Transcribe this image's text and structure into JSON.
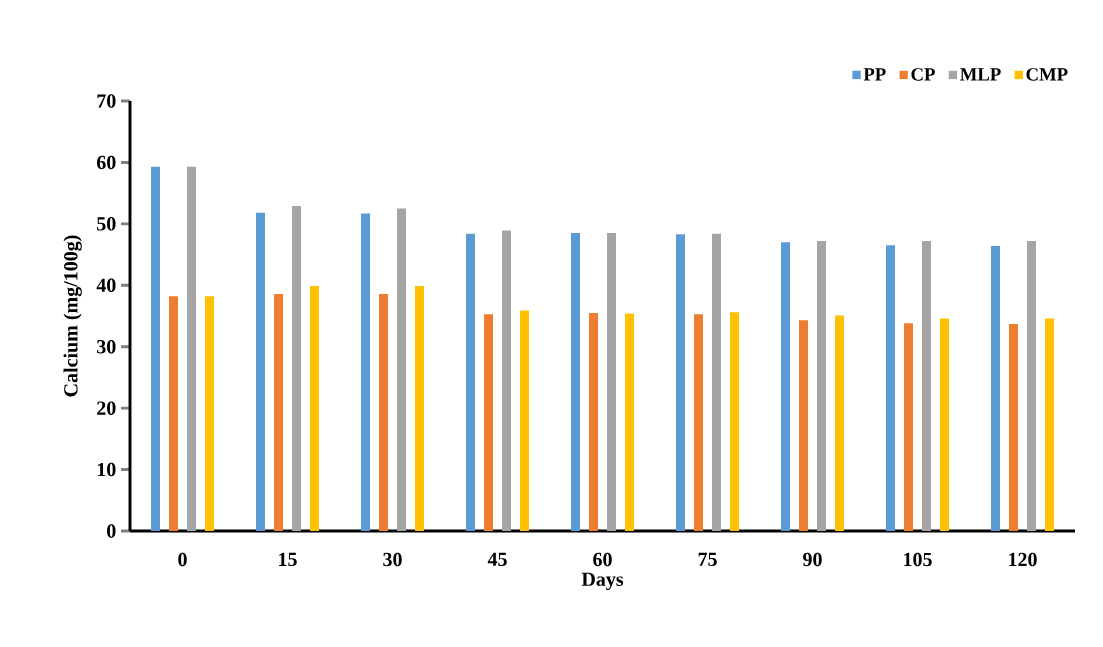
{
  "chart_data": {
    "type": "bar",
    "xlabel": "Days",
    "ylabel": "Calcium (mg/100g)",
    "categories": [
      "0",
      "15",
      "30",
      "45",
      "60",
      "75",
      "90",
      "105",
      "120"
    ],
    "series": [
      {
        "name": "PP",
        "color": "#5b9bd5",
        "values": [
          59.3,
          51.8,
          51.7,
          48.4,
          48.5,
          48.3,
          47.0,
          46.5,
          46.4
        ]
      },
      {
        "name": "CP",
        "color": "#ed7d31",
        "values": [
          38.2,
          38.6,
          38.6,
          35.3,
          35.5,
          35.3,
          34.3,
          33.8,
          33.7
        ]
      },
      {
        "name": "MLP",
        "color": "#a5a5a5",
        "values": [
          59.3,
          52.9,
          52.5,
          48.9,
          48.5,
          48.4,
          47.2,
          47.2,
          47.2
        ]
      },
      {
        "name": "CMP",
        "color": "#ffc000",
        "values": [
          38.2,
          39.9,
          39.9,
          35.9,
          35.4,
          35.6,
          35.1,
          34.6,
          34.6
        ]
      }
    ],
    "ylim": [
      0,
      70
    ],
    "yticks": [
      0,
      10,
      20,
      30,
      40,
      50,
      60,
      70
    ],
    "grid": false,
    "legend": "top right"
  }
}
